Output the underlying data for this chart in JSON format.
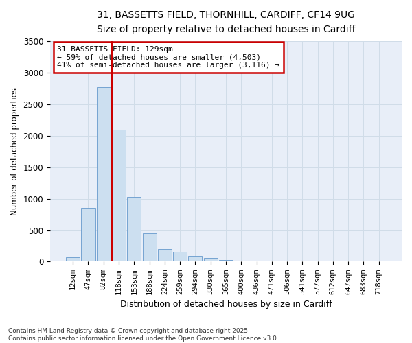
{
  "title_line1": "31, BASSETTS FIELD, THORNHILL, CARDIFF, CF14 9UG",
  "title_line2": "Size of property relative to detached houses in Cardiff",
  "xlabel": "Distribution of detached houses by size in Cardiff",
  "ylabel": "Number of detached properties",
  "categories": [
    "12sqm",
    "47sqm",
    "82sqm",
    "118sqm",
    "153sqm",
    "188sqm",
    "224sqm",
    "259sqm",
    "294sqm",
    "330sqm",
    "365sqm",
    "400sqm",
    "436sqm",
    "471sqm",
    "506sqm",
    "541sqm",
    "577sqm",
    "612sqm",
    "647sqm",
    "683sqm",
    "718sqm"
  ],
  "values": [
    75,
    850,
    2775,
    2100,
    1030,
    455,
    205,
    155,
    90,
    55,
    30,
    15,
    8,
    5,
    3,
    2,
    1,
    1,
    1,
    1,
    1
  ],
  "bar_color": "#ccdff0",
  "bar_edge_color": "#6699cc",
  "red_line_x": 3.0,
  "annotation_line1": "31 BASSETTS FIELD: 129sqm",
  "annotation_line2": "← 59% of detached houses are smaller (4,503)",
  "annotation_line3": "41% of semi-detached houses are larger (3,116) →",
  "annotation_box_facecolor": "#ffffff",
  "annotation_box_edgecolor": "#cc0000",
  "ylim": [
    0,
    3500
  ],
  "yticks": [
    0,
    500,
    1000,
    1500,
    2000,
    2500,
    3000,
    3500
  ],
  "grid_color": "#d0dce8",
  "plot_bg_color": "#e8eef8",
  "fig_bg_color": "#ffffff",
  "footnote_line1": "Contains HM Land Registry data © Crown copyright and database right 2025.",
  "footnote_line2": "Contains public sector information licensed under the Open Government Licence v3.0."
}
